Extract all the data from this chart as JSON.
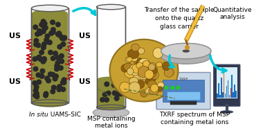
{
  "background_color": "#ffffff",
  "tube1_fill": "#8B8B3A",
  "tube1_outline": "#555555",
  "dot_color": "#2a2a2a",
  "us_color": "#CC0000",
  "arrow_color": "#00C8D8",
  "wave_color": "#DD0000",
  "np_bg": "#C8A030",
  "np_edge": "#A07820",
  "np_colors": [
    "#D4AA50",
    "#C09030",
    "#E0C060",
    "#8B5E10",
    "#F0D070",
    "#B08020",
    "#E8B840"
  ],
  "instrument_main": "#C0D0E0",
  "instrument_panel": "#6090C0",
  "instrument_dark": "#8090A0",
  "screen_frame": "#303850",
  "screen_display": "#D8EEF8",
  "screen_bar_blue": "#1060C0",
  "screen_bar_cyan": "#00A0B0",
  "screen_bar_red": "#C04030",
  "disc_color": "#B8B8B8",
  "disc_hole": "#505050",
  "label1_italic": "In situ",
  "label1_normal": " UAMS-SIC",
  "label2": "MSP containing\nmetal ions",
  "label3": "Transfer of the sample\nonto the quartz\nglass carrier",
  "label4": "Quantitative\nanalysis",
  "label5": "TXRF spectrum of MSP\ncontaining metal ions"
}
